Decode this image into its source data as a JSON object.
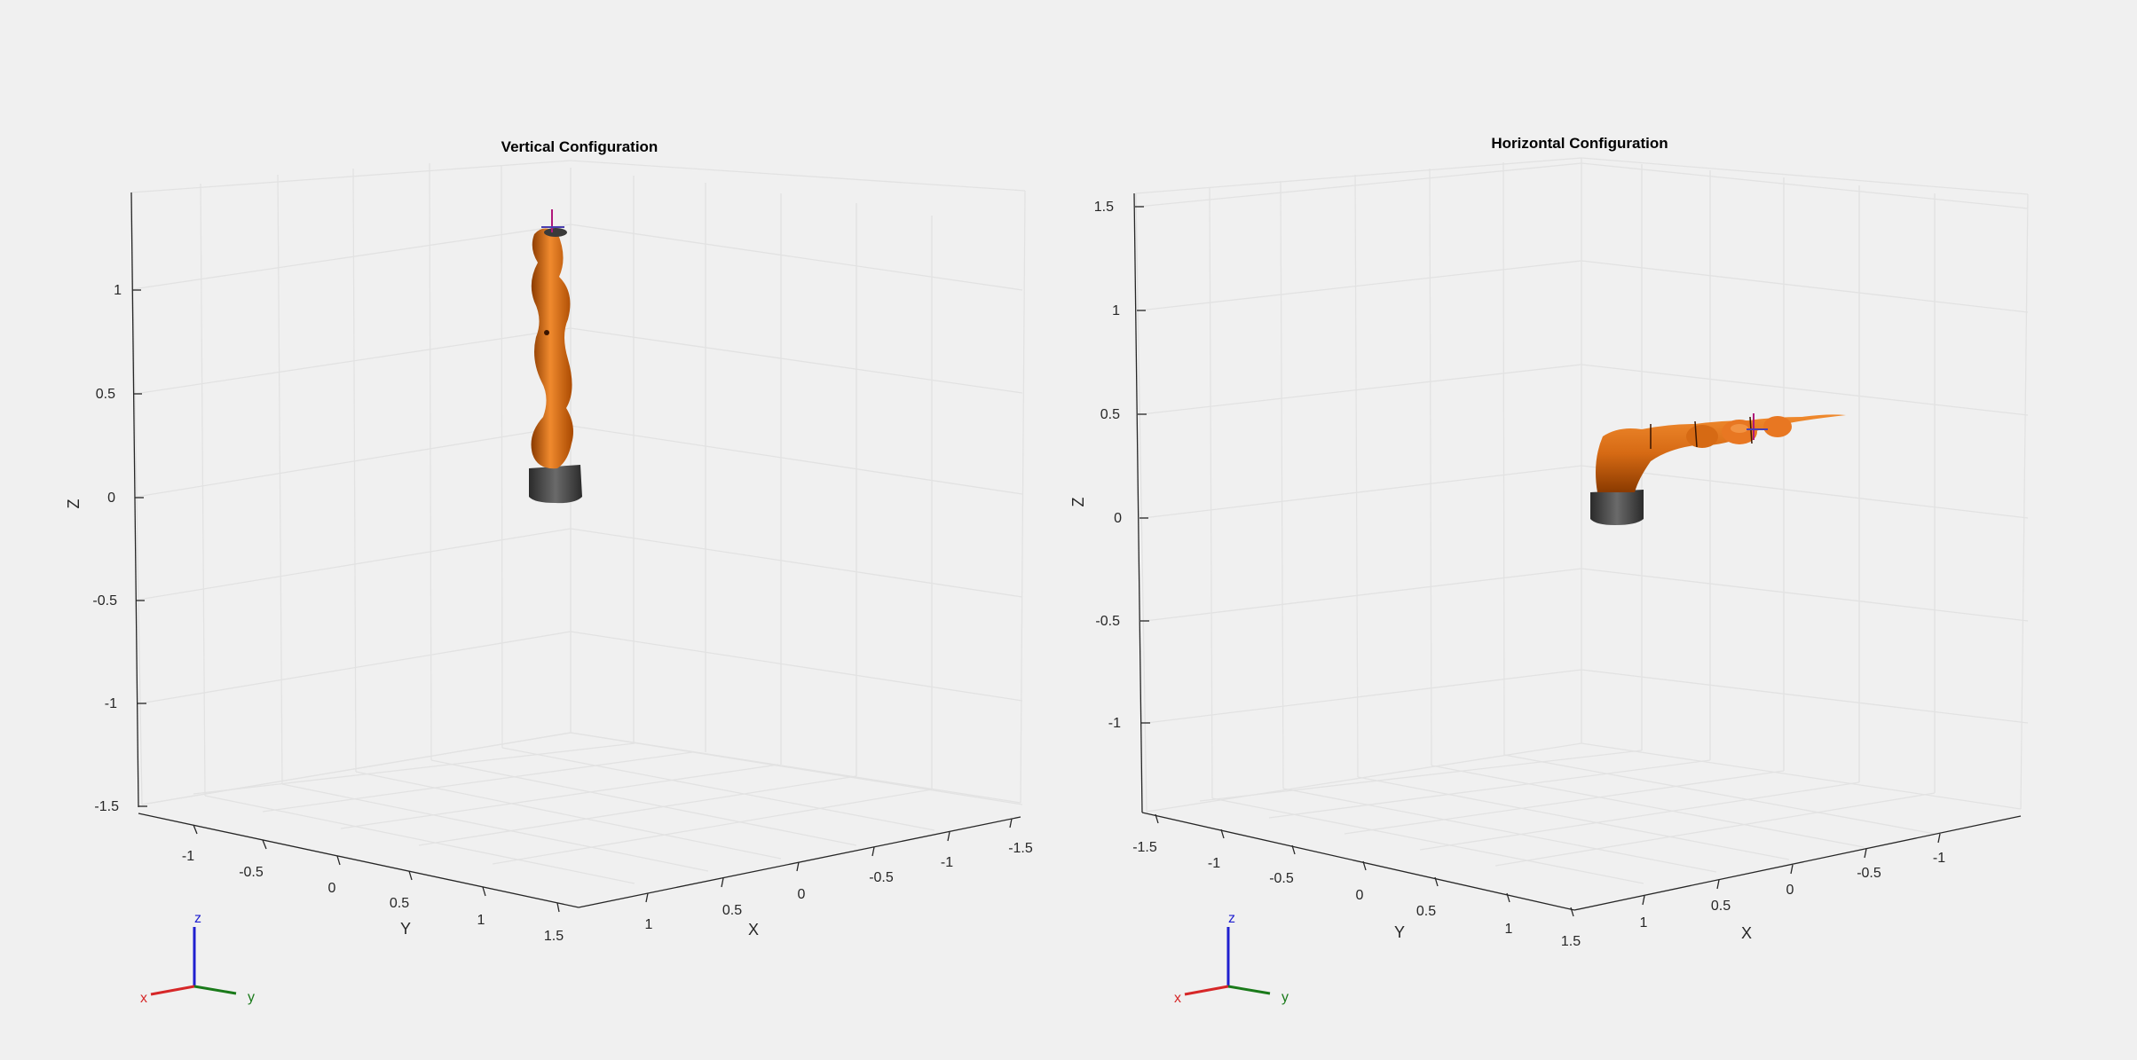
{
  "figure": {
    "background": "#f0f0f0",
    "axes_color": "#262626",
    "grid_color": "#e2e2e2",
    "robot_color": "#e87722",
    "base_color": "#3a3a3a"
  },
  "axes_triad": {
    "x": "x",
    "y": "y",
    "z": "z",
    "x_color": "#d62728",
    "y_color": "#1a7a1a",
    "z_color": "#1f1fcf"
  },
  "left": {
    "title": "Vertical Configuration",
    "zlabel": "Z",
    "ylabel": "Y",
    "xlabel": "X",
    "z_ticks": [
      "1",
      "0.5",
      "0",
      "-0.5",
      "-1",
      "-1.5"
    ],
    "y_ticks": [
      "-1",
      "-0.5",
      "0",
      "0.5",
      "1",
      "1.5"
    ],
    "x_ticks": [
      "1",
      "0.5",
      "0",
      "-0.5",
      "-1",
      "-1.5"
    ]
  },
  "right": {
    "title": "Horizontal Configuration",
    "zlabel": "Z",
    "ylabel": "Y",
    "xlabel": "X",
    "z_ticks": [
      "1.5",
      "1",
      "0.5",
      "0",
      "-0.5",
      "-1"
    ],
    "y_ticks": [
      "-1.5",
      "-1",
      "-0.5",
      "0",
      "0.5",
      "1",
      "1.5"
    ],
    "x_ticks": [
      "1",
      "0.5",
      "0",
      "-0.5",
      "-1"
    ]
  }
}
